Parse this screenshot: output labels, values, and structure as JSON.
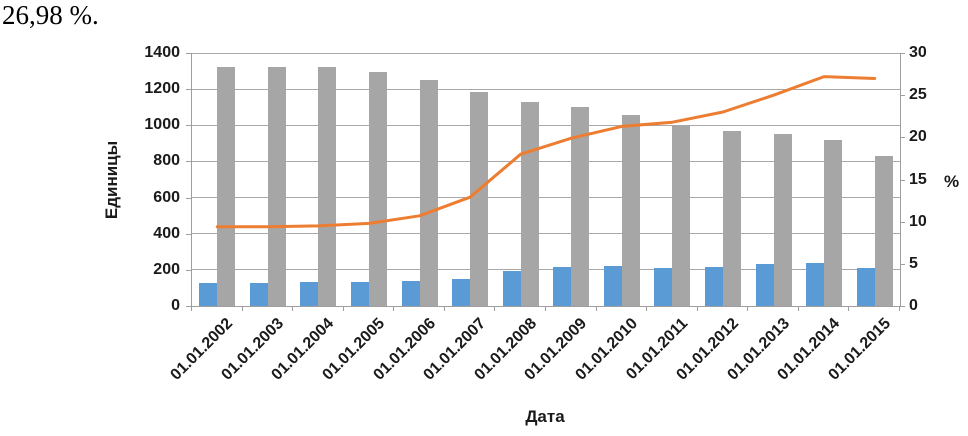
{
  "caption": {
    "text": "26,98 %."
  },
  "chart_data": {
    "type": "combo",
    "title": "",
    "legend": "none",
    "grid": true,
    "categories": [
      "01.01.2002",
      "01.01.2003",
      "01.01.2004",
      "01.01.2005",
      "01.01.2006",
      "01.01.2007",
      "01.01.2008",
      "01.01.2009",
      "01.01.2010",
      "01.01.2011",
      "01.01.2012",
      "01.01.2013",
      "01.01.2014",
      "01.01.2015"
    ],
    "series": [
      {
        "name": "blue_bars",
        "type": "bar",
        "axis": "left",
        "color": "#5B9BD5",
        "values": [
          130,
          130,
          135,
          135,
          140,
          150,
          195,
          215,
          220,
          210,
          215,
          230,
          240,
          210
        ]
      },
      {
        "name": "gray_bars",
        "type": "bar",
        "axis": "left",
        "color": "#A6A6A6",
        "values": [
          1320,
          1325,
          1325,
          1295,
          1250,
          1185,
          1130,
          1100,
          1055,
          1000,
          970,
          950,
          920,
          830
        ]
      },
      {
        "name": "percent_line",
        "type": "line",
        "axis": "right",
        "color": "#ED7D31",
        "values": [
          9.4,
          9.4,
          9.5,
          9.8,
          10.7,
          12.9,
          18.0,
          19.9,
          21.3,
          21.8,
          23.0,
          25.0,
          27.2,
          26.98
        ]
      }
    ],
    "left_axis": {
      "title": "Единицы",
      "min": 0,
      "max": 1400,
      "step": 200,
      "ticks": [
        0,
        200,
        400,
        600,
        800,
        1000,
        1200,
        1400
      ]
    },
    "right_axis": {
      "title": "%",
      "min": 0,
      "max": 30,
      "step": 5,
      "ticks": [
        0,
        5,
        10,
        15,
        20,
        25,
        30
      ]
    },
    "x_axis": {
      "title": "Дата"
    }
  },
  "colors": {
    "blue": "#5B9BD5",
    "gray": "#A6A6A6",
    "orange": "#ED7D31",
    "gridline": "#A9A9A9",
    "axis_line": "#9E9E9E",
    "text": "#1A1A1A"
  }
}
